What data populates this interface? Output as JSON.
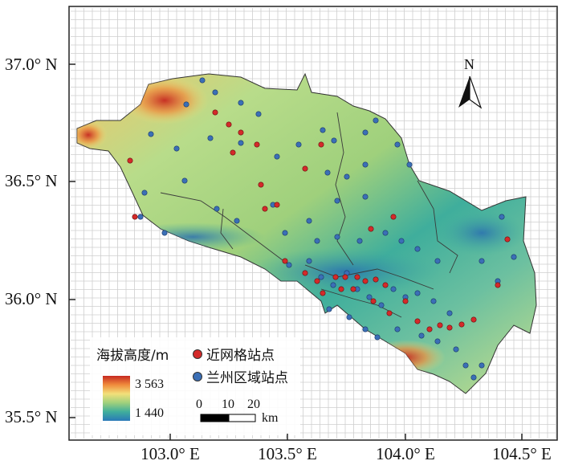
{
  "axes": {
    "lat_labels": [
      "37.0° N",
      "36.5° N",
      "36.0° N",
      "35.5° N"
    ],
    "lon_labels": [
      "103.0° E",
      "103.5° E",
      "104.0° E",
      "104.5° E"
    ]
  },
  "north_arrow": {
    "label": "N",
    "icon": "north-arrow-icon"
  },
  "legend": {
    "elevation_title": "海拔高度/m",
    "elevation_max": "3 563",
    "elevation_min": "1 440",
    "stations": [
      {
        "label": "近网格站点",
        "color": "#d42a2a"
      },
      {
        "label": "兰州区域站点",
        "color": "#3b6fb6"
      }
    ]
  },
  "scale_bar": {
    "ticks": [
      "0",
      "10",
      "20"
    ],
    "unit": "km"
  },
  "colors": {
    "elev_high": "#c62820",
    "elev_mid_high": "#f08c3c",
    "elev_mid": "#f2e07a",
    "elev_mid_low": "#9fd07c",
    "elev_low": "#3fae9c",
    "elev_lowest": "#2a79b8",
    "frame": "#222222",
    "grid": "#c8c8c8"
  }
}
